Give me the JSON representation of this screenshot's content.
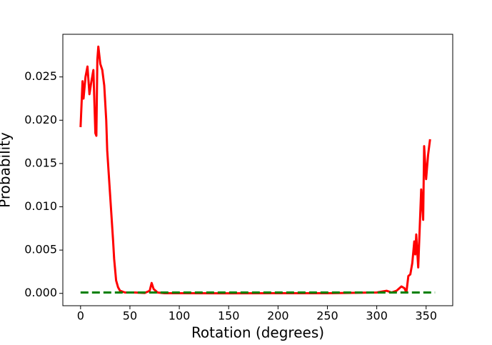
{
  "chart_data": {
    "type": "line",
    "xlabel": "Rotation (degrees)",
    "ylabel": "Probability",
    "xlim": [
      -17.95,
      376.95
    ],
    "ylim": [
      -0.001425,
      0.029925
    ],
    "xticks": [
      0,
      50,
      100,
      150,
      200,
      250,
      300,
      350
    ],
    "yticks": [
      {
        "value": 0,
        "label": "0.000"
      },
      {
        "value": 0.005,
        "label": "0.005"
      },
      {
        "value": 0.01,
        "label": "0.010"
      },
      {
        "value": 0.015,
        "label": "0.015"
      },
      {
        "value": 0.02,
        "label": "0.020"
      },
      {
        "value": 0.025,
        "label": "0.025"
      }
    ],
    "series": [
      {
        "color": "#ff0000",
        "dashed": false,
        "x": [
          0,
          2,
          3,
          5,
          7,
          9,
          11,
          13,
          15,
          16,
          17,
          18,
          20,
          22,
          24,
          26,
          27,
          29,
          31,
          33,
          34,
          36,
          38,
          40,
          45,
          55,
          65,
          70,
          72,
          74,
          78,
          85,
          150,
          250,
          300,
          310,
          315,
          320,
          325,
          328,
          330,
          332,
          334,
          336,
          338,
          339,
          340,
          342,
          344,
          345,
          347,
          348,
          350,
          352,
          354
        ],
        "values": [
          0.0192,
          0.0245,
          0.0225,
          0.025,
          0.0262,
          0.023,
          0.0245,
          0.0258,
          0.0185,
          0.0182,
          0.027,
          0.0285,
          0.0265,
          0.0258,
          0.024,
          0.02,
          0.0165,
          0.013,
          0.0095,
          0.006,
          0.004,
          0.0015,
          0.0007,
          0.0003,
          0.0001,
          0.0001,
          5e-05,
          0.0003,
          0.0012,
          0.0005,
          0.0001,
          2e-05,
          1e-05,
          2e-05,
          0.0001,
          0.0003,
          0.0001,
          0.0003,
          0.0008,
          0.0006,
          0.0001,
          0.002,
          0.0022,
          0.0035,
          0.006,
          0.0045,
          0.0068,
          0.003,
          0.009,
          0.012,
          0.0085,
          0.017,
          0.0132,
          0.016,
          0.0178
        ]
      },
      {
        "color": "#008000",
        "dashed": true,
        "x": [
          0,
          50,
          100,
          150,
          200,
          250,
          300,
          359
        ],
        "values": [
          0.0001,
          0.0001,
          0.0001,
          0.0001,
          0.0001,
          0.0001,
          0.0001,
          0.0001
        ]
      }
    ]
  }
}
